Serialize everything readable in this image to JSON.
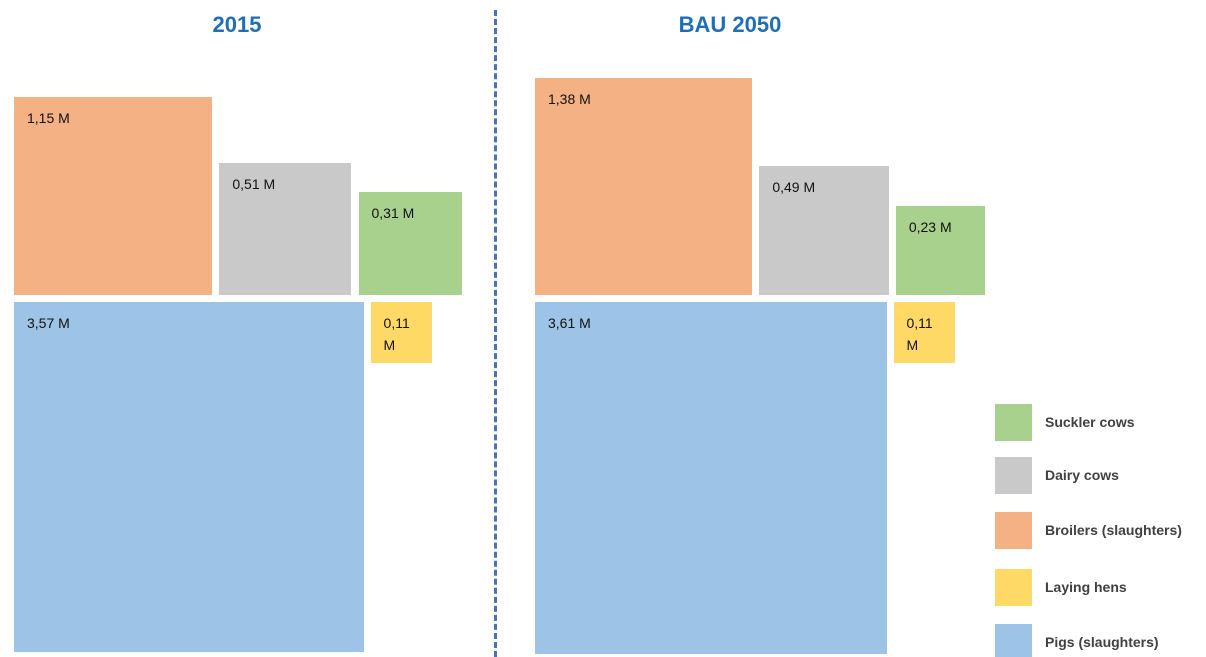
{
  "chart_data": {
    "type": "square",
    "categories": [
      "2015",
      "BAU 2050"
    ],
    "series": [
      {
        "name": "Suckler cows",
        "color": "#a9d18e",
        "values": [
          0.31,
          0.23
        ],
        "value_labels": [
          "0,31 M",
          "0,23 M"
        ]
      },
      {
        "name": "Dairy cows",
        "color": "#c9c9c9",
        "values": [
          0.51,
          0.49
        ],
        "value_labels": [
          "0,51 M",
          "0,49 M"
        ]
      },
      {
        "name": "Broilers (slaughters)",
        "color": "#f4b183",
        "values": [
          1.15,
          1.38
        ],
        "value_labels": [
          "1,15 M",
          "1,38 M"
        ]
      },
      {
        "name": "Laying hens",
        "color": "#ffd966",
        "values": [
          0.11,
          0.11
        ],
        "value_labels": [
          "0,11 M",
          "0,11 M"
        ]
      },
      {
        "name": "Pigs (slaughters)",
        "color": "#9dc3e6",
        "values": [
          3.57,
          3.61
        ],
        "value_labels": [
          "3,57 M",
          "3,61 M"
        ]
      }
    ]
  }
}
